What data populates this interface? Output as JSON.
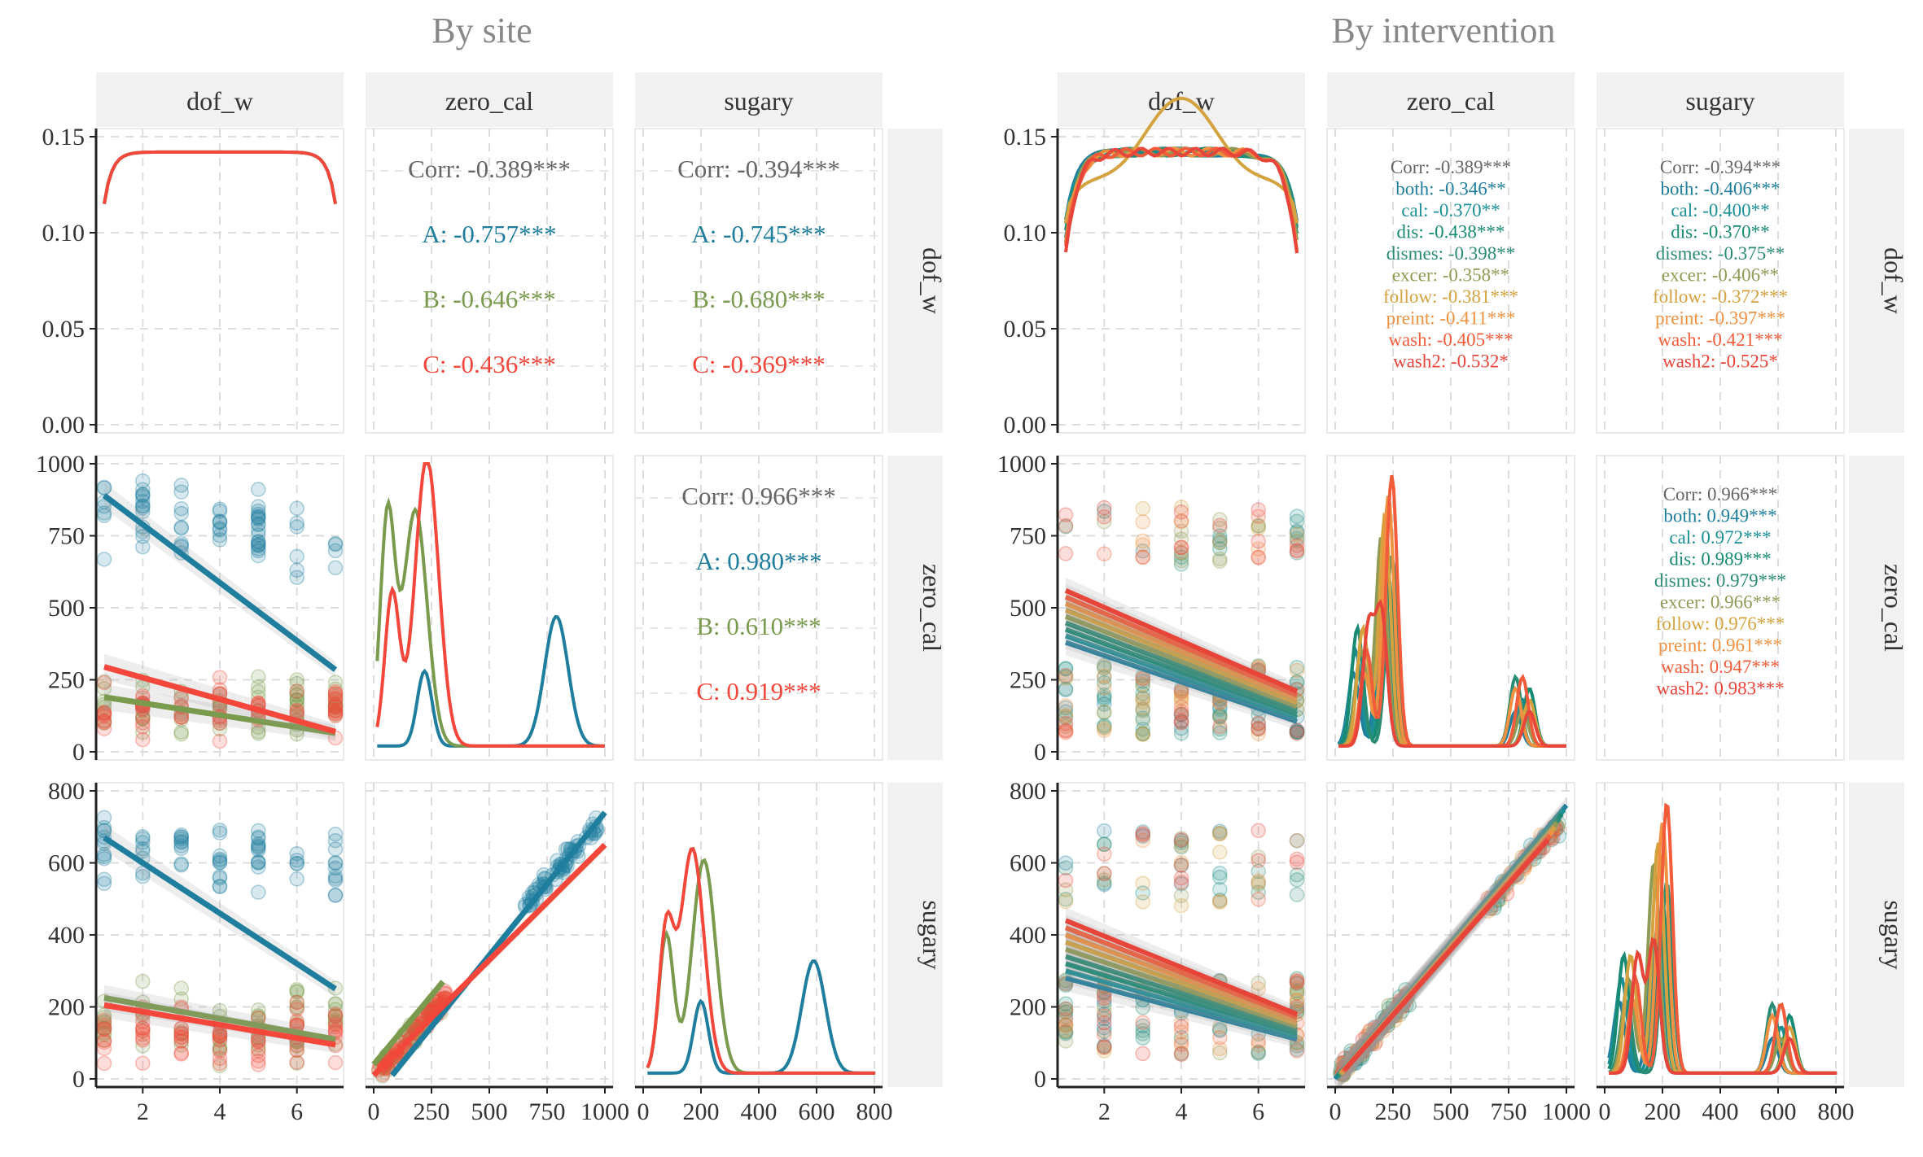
{
  "colors": {
    "A": "#1f7e9e",
    "B": "#7a9a4e",
    "C": "#f2473a",
    "corr": "#666666",
    "both": "#1f7e9e",
    "cal": "#1b8f98",
    "dis": "#178a74",
    "dismes": "#2a8c74",
    "excer": "#8f9b55",
    "follow": "#d4a23e",
    "preint": "#ef9140",
    "wash": "#f25c3a",
    "wash2": "#e8453a"
  },
  "by_site": {
    "title": "By site",
    "columns": [
      "dof_w",
      "zero_cal",
      "sugary"
    ],
    "rows": [
      "dof_w",
      "zero_cal",
      "sugary"
    ],
    "corr_blocks": [
      {
        "name": "dof_w-zero_cal",
        "lines": [
          {
            "key": "corr",
            "text": "Corr: -0.389***"
          },
          {
            "key": "A",
            "text": "A: -0.757***"
          },
          {
            "key": "B",
            "text": "B: -0.646***"
          },
          {
            "key": "C",
            "text": "C: -0.436***"
          }
        ]
      },
      {
        "name": "dof_w-sugary",
        "lines": [
          {
            "key": "corr",
            "text": "Corr: -0.394***"
          },
          {
            "key": "A",
            "text": "A: -0.745***"
          },
          {
            "key": "B",
            "text": "B: -0.680***"
          },
          {
            "key": "C",
            "text": "C: -0.369***"
          }
        ]
      },
      {
        "name": "zero_cal-sugary",
        "lines": [
          {
            "key": "corr",
            "text": "Corr: 0.966***"
          },
          {
            "key": "A",
            "text": "A: 0.980***"
          },
          {
            "key": "B",
            "text": "B: 0.610***"
          },
          {
            "key": "C",
            "text": "C: 0.919***"
          }
        ]
      }
    ]
  },
  "by_intervention": {
    "title": "By intervention",
    "columns": [
      "dof_w",
      "zero_cal",
      "sugary"
    ],
    "rows": [
      "dof_w",
      "zero_cal",
      "sugary"
    ],
    "corr_blocks": [
      {
        "name": "dof_w-zero_cal",
        "lines": [
          {
            "key": "corr",
            "text": "Corr: -0.389***"
          },
          {
            "key": "both",
            "text": "both: -0.346**"
          },
          {
            "key": "cal",
            "text": "cal: -0.370**"
          },
          {
            "key": "dis",
            "text": "dis: -0.438***"
          },
          {
            "key": "dismes",
            "text": "dismes: -0.398**"
          },
          {
            "key": "excer",
            "text": "excer: -0.358**"
          },
          {
            "key": "follow",
            "text": "follow: -0.381***"
          },
          {
            "key": "preint",
            "text": "preint: -0.411***"
          },
          {
            "key": "wash",
            "text": "wash: -0.405***"
          },
          {
            "key": "wash2",
            "text": "wash2: -0.532*"
          }
        ]
      },
      {
        "name": "dof_w-sugary",
        "lines": [
          {
            "key": "corr",
            "text": "Corr: -0.394***"
          },
          {
            "key": "both",
            "text": "both: -0.406***"
          },
          {
            "key": "cal",
            "text": "cal: -0.400**"
          },
          {
            "key": "dis",
            "text": "dis: -0.370**"
          },
          {
            "key": "dismes",
            "text": "dismes: -0.375**"
          },
          {
            "key": "excer",
            "text": "excer: -0.406**"
          },
          {
            "key": "follow",
            "text": "follow: -0.372***"
          },
          {
            "key": "preint",
            "text": "preint: -0.397***"
          },
          {
            "key": "wash",
            "text": "wash: -0.421***"
          },
          {
            "key": "wash2",
            "text": "wash2: -0.525*"
          }
        ]
      },
      {
        "name": "zero_cal-sugary",
        "lines": [
          {
            "key": "corr",
            "text": "Corr: 0.966***"
          },
          {
            "key": "both",
            "text": "both: 0.949***"
          },
          {
            "key": "cal",
            "text": "cal: 0.972***"
          },
          {
            "key": "dis",
            "text": "dis: 0.989***"
          },
          {
            "key": "dismes",
            "text": "dismes: 0.979***"
          },
          {
            "key": "excer",
            "text": "excer: 0.966***"
          },
          {
            "key": "follow",
            "text": "follow: 0.976***"
          },
          {
            "key": "preint",
            "text": "preint: 0.961***"
          },
          {
            "key": "wash",
            "text": "wash: 0.947***"
          },
          {
            "key": "wash2",
            "text": "wash2: 0.983***"
          }
        ]
      }
    ]
  },
  "chart_data": [
    {
      "type": "scatter",
      "title": "By site",
      "groups": [
        "A",
        "B",
        "C"
      ],
      "variables": [
        "dof_w",
        "zero_cal",
        "sugary"
      ],
      "axes": {
        "dof_w": {
          "lim": [
            1,
            7
          ],
          "ticks": [
            2,
            4,
            6
          ]
        },
        "zero_cal": {
          "lim": [
            0,
            1000
          ],
          "ticks": [
            0,
            250,
            500,
            750,
            1000
          ],
          "tick_labels": [
            "0",
            "250",
            "500",
            "750",
            "1000"
          ]
        },
        "sugary": {
          "lim": [
            0,
            800
          ],
          "ticks": [
            0,
            200,
            400,
            600,
            800
          ]
        },
        "density_y": {
          "lim": [
            0,
            0.15
          ],
          "ticks": [
            0.0,
            0.05,
            0.1,
            0.15
          ],
          "tick_labels": [
            "0.00",
            "0.05",
            "0.10",
            "0.15"
          ]
        }
      },
      "group_clusters": {
        "A": {
          "zero_cal": [
            550,
            1000
          ],
          "sugary": [
            450,
            780
          ]
        },
        "B": {
          "zero_cal": [
            0,
            320
          ],
          "sugary": [
            0,
            320
          ]
        },
        "C": {
          "zero_cal": [
            0,
            300
          ],
          "sugary": [
            0,
            250
          ]
        }
      },
      "regression_lines": {
        "dof_w_vs_zero_cal": {
          "A": [
            [
              1,
              890
            ],
            [
              7,
              285
            ]
          ],
          "B": [
            [
              1,
              190
            ],
            [
              7,
              65
            ]
          ],
          "C": [
            [
              1,
              295
            ],
            [
              7,
              70
            ]
          ]
        },
        "dof_w_vs_sugary": {
          "A": [
            [
              1,
              670
            ],
            [
              7,
              250
            ]
          ],
          "B": [
            [
              1,
              225
            ],
            [
              7,
              110
            ]
          ],
          "C": [
            [
              1,
              205
            ],
            [
              7,
              95
            ]
          ]
        },
        "zero_cal_vs_sugary": {
          "A": [
            [
              80,
              10
            ],
            [
              1000,
              740
            ]
          ],
          "B": [
            [
              0,
              40
            ],
            [
              300,
              270
            ]
          ],
          "C": [
            [
              0,
              10
            ],
            [
              1000,
              650
            ]
          ]
        }
      },
      "density_dof_w": {
        "shape": "flat",
        "ends": 0.115,
        "plateau": 0.142
      },
      "density_zero_cal": {
        "A": {
          "peaks_at": [
            220,
            790
          ],
          "peak_levels": [
            0.26,
            0.45
          ]
        },
        "B": {
          "peaks_at": [
            60,
            180
          ],
          "peak_levels": [
            0.79,
            0.82
          ]
        },
        "C": {
          "peaks_at": [
            80,
            230
          ],
          "peak_levels": [
            0.53,
            1.0
          ]
        }
      },
      "density_sugary": {
        "A": {
          "peaks_at": [
            200,
            590
          ],
          "peak_levels": [
            0.25,
            0.39
          ]
        },
        "B": {
          "peaks_at": [
            80,
            210
          ],
          "peak_levels": [
            0.48,
            0.74
          ]
        },
        "C": {
          "peaks_at": [
            80,
            170
          ],
          "peak_levels": [
            0.48,
            0.78
          ]
        }
      }
    },
    {
      "type": "scatter",
      "title": "By intervention",
      "groups": [
        "both",
        "cal",
        "dis",
        "dismes",
        "excer",
        "follow",
        "preint",
        "wash",
        "wash2"
      ],
      "variables": [
        "dof_w",
        "zero_cal",
        "sugary"
      ],
      "axes": {
        "dof_w": {
          "lim": [
            1,
            7
          ],
          "ticks": [
            2,
            4,
            6
          ]
        },
        "zero_cal": {
          "lim": [
            0,
            1000
          ],
          "ticks": [
            0,
            250,
            500,
            750,
            1000
          ],
          "tick_labels": [
            "0",
            "250",
            "500",
            "750",
            "1000"
          ]
        },
        "sugary": {
          "lim": [
            0,
            800
          ],
          "ticks": [
            0,
            200,
            400,
            600,
            800
          ]
        },
        "density_y": {
          "lim": [
            0,
            0.15
          ],
          "ticks": [
            0.0,
            0.05,
            0.1,
            0.15
          ],
          "tick_labels": [
            "0.00",
            "0.05",
            "0.10",
            "0.15"
          ]
        }
      },
      "regression_lines": {
        "dof_w_vs_zero_cal": {
          "range_at_1": [
            380,
            560
          ],
          "range_at_7": [
            60,
            210
          ]
        },
        "dof_w_vs_sugary": {
          "range_at_1": [
            280,
            440
          ],
          "range_at_7": [
            80,
            180
          ]
        },
        "zero_cal_vs_sugary": {
          "start": [
            0,
            0
          ],
          "end": [
            1000,
            760
          ]
        }
      },
      "density_dof_w": {
        "wavy_series": "follow",
        "ends": 0.105,
        "plateau": 0.142
      }
    }
  ]
}
